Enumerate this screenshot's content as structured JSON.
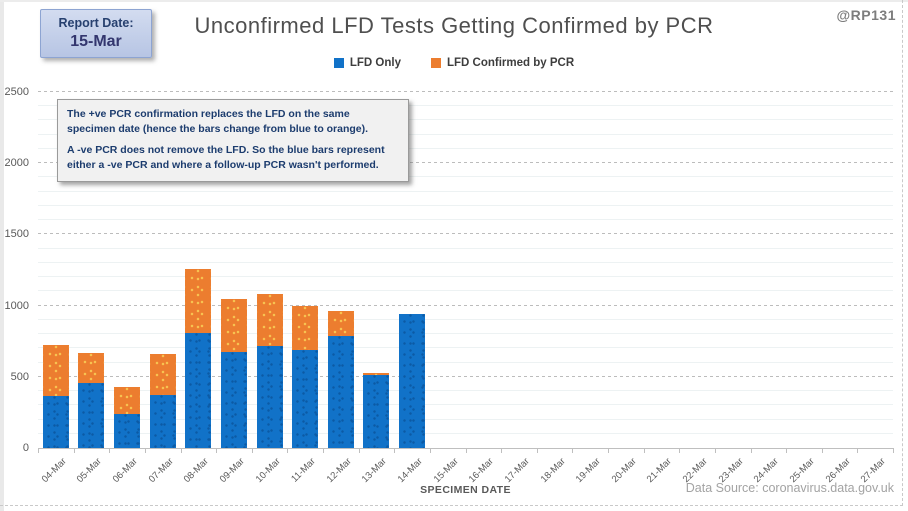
{
  "report_box": {
    "label": "Report Date:",
    "value": "15-Mar"
  },
  "header": {
    "title": "Unconfirmed LFD Tests Getting Confirmed by PCR",
    "handle": "@RP131"
  },
  "legend": [
    {
      "label": "LFD Only",
      "color": "#1172c8"
    },
    {
      "label": "LFD Confirmed by PCR",
      "color": "#ec7d2f"
    }
  ],
  "annotation": {
    "para1": "The +ve PCR confirmation replaces the LFD on the same specimen date (hence the bars change from blue to orange).",
    "para2": "A -ve PCR does not remove the LFD. So the blue bars represent either a -ve PCR and where a follow-up PCR wasn't performed."
  },
  "chart_data": {
    "type": "bar",
    "stacked": true,
    "title": "Unconfirmed LFD Tests Getting Confirmed by PCR",
    "xlabel": "SPECIMEN DATE",
    "ylabel": "",
    "ylim": [
      0,
      2500
    ],
    "ytick_interval": 500,
    "minor_gridline_interval": 100,
    "grid": true,
    "legend_position": "top",
    "categories": [
      "04-Mar",
      "05-Mar",
      "06-Mar",
      "07-Mar",
      "08-Mar",
      "09-Mar",
      "10-Mar",
      "11-Mar",
      "12-Mar",
      "13-Mar",
      "14-Mar",
      "15-Mar",
      "16-Mar",
      "17-Mar",
      "18-Mar",
      "19-Mar",
      "20-Mar",
      "21-Mar",
      "22-Mar",
      "23-Mar",
      "24-Mar",
      "25-Mar",
      "26-Mar",
      "27-Mar"
    ],
    "series": [
      {
        "name": "LFD Only",
        "color": "#1172c8",
        "values": [
          365,
          460,
          240,
          370,
          805,
          675,
          715,
          685,
          790,
          510,
          940,
          0,
          0,
          0,
          0,
          0,
          0,
          0,
          0,
          0,
          0,
          0,
          0,
          0
        ]
      },
      {
        "name": "LFD Confirmed by PCR",
        "color": "#ec7d2f",
        "values": [
          360,
          205,
          190,
          290,
          450,
          375,
          370,
          310,
          175,
          20,
          0,
          0,
          0,
          0,
          0,
          0,
          0,
          0,
          0,
          0,
          0,
          0,
          0,
          0
        ]
      }
    ]
  },
  "footer": {
    "data_source": "Data Source: coronavirus.data.gov.uk"
  }
}
